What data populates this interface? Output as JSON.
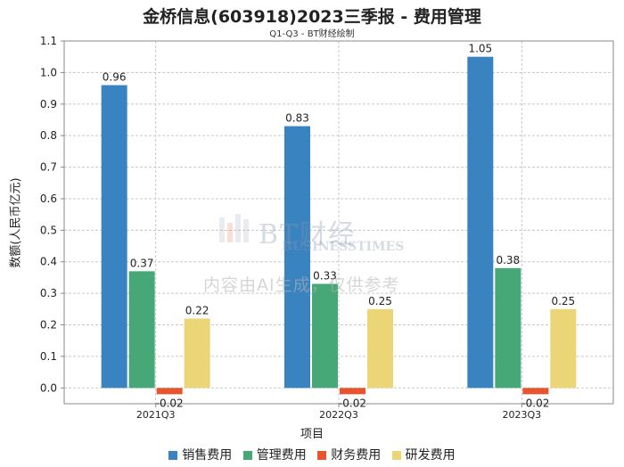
{
  "title": "金桥信息(603918)2023三季报 - 费用管理",
  "subtitle": "Q1-Q3 - BT财经绘制",
  "watermark": {
    "brand": "BT财经",
    "brand_en": "BUSINESSTIMES",
    "notice": "内容由AI生成，仅供参考"
  },
  "chart_data": {
    "type": "bar",
    "title": "金桥信息(603918)2023三季报 - 费用管理",
    "subtitle": "Q1-Q3 - BT财经绘制",
    "xlabel": "项目",
    "ylabel": "数额(人民币亿元)",
    "ylim": [
      -0.05,
      1.1
    ],
    "yticks": [
      "0.0",
      "0.1",
      "0.2",
      "0.3",
      "0.4",
      "0.5",
      "0.6",
      "0.7",
      "0.8",
      "0.9",
      "1.0",
      "1.1"
    ],
    "categories": [
      "2021Q3",
      "2022Q3",
      "2023Q3"
    ],
    "grid": true,
    "legend_position": "bottom",
    "series": [
      {
        "name": "销售费用",
        "color": "#3a83c1",
        "values": [
          0.96,
          0.83,
          1.05
        ],
        "labels": [
          "0.96",
          "0.83",
          "1.05"
        ]
      },
      {
        "name": "管理费用",
        "color": "#46a876",
        "values": [
          0.37,
          0.33,
          0.38
        ],
        "labels": [
          "0.37",
          "0.33",
          "0.38"
        ]
      },
      {
        "name": "财务费用",
        "color": "#e6552f",
        "values": [
          -0.02,
          -0.02,
          -0.02
        ],
        "labels": [
          "-0.02",
          "-0.02",
          "-0.02"
        ]
      },
      {
        "name": "研发费用",
        "color": "#ecd577",
        "values": [
          0.22,
          0.25,
          0.25
        ],
        "labels": [
          "0.22",
          "0.25",
          "0.25"
        ]
      }
    ]
  }
}
